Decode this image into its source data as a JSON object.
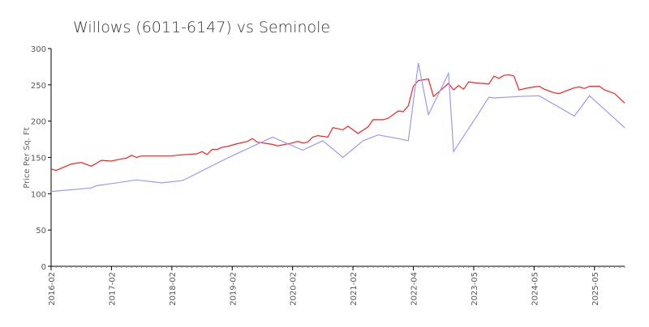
{
  "chart_data": {
    "type": "line",
    "title": "Willows (6011-6147) vs Seminole",
    "xlabel": "",
    "ylabel": "Price Per Sq. Ft",
    "ylim": [
      0,
      300
    ],
    "y_ticks": [
      "0",
      "50",
      "100",
      "150",
      "200",
      "250",
      "300"
    ],
    "x_start": "2016-02",
    "x_end": "2025-08",
    "x_ticks": [
      "2016-02",
      "2017-02",
      "2018-02",
      "2019-02",
      "2020-02",
      "2021-02",
      "2022-04",
      "2023-05",
      "2024-05",
      "2025-05"
    ],
    "grid": false,
    "legend": "none",
    "series": [
      {
        "color": "#ff2020",
        "points": [
          [
            "2016-02",
            134
          ],
          [
            "2016-03",
            132
          ],
          [
            "2016-06",
            141
          ],
          [
            "2016-08",
            143
          ],
          [
            "2016-10",
            138
          ],
          [
            "2016-12",
            146
          ],
          [
            "2017-02",
            145
          ],
          [
            "2017-04",
            148
          ],
          [
            "2017-05",
            149
          ],
          [
            "2017-06",
            153
          ],
          [
            "2017-07",
            150
          ],
          [
            "2017-08",
            152
          ],
          [
            "2018-02",
            152
          ],
          [
            "2018-03",
            153
          ],
          [
            "2018-07",
            155
          ],
          [
            "2018-08",
            158
          ],
          [
            "2018-09",
            154
          ],
          [
            "2018-10",
            161
          ],
          [
            "2018-11",
            161
          ],
          [
            "2018-12",
            164
          ],
          [
            "2019-01",
            165
          ],
          [
            "2019-03",
            169
          ],
          [
            "2019-05",
            172
          ],
          [
            "2019-06",
            176
          ],
          [
            "2019-07",
            171
          ],
          [
            "2019-10",
            168
          ],
          [
            "2019-11",
            166
          ],
          [
            "2020-02",
            170
          ],
          [
            "2020-03",
            172
          ],
          [
            "2020-04",
            170
          ],
          [
            "2020-05",
            171
          ],
          [
            "2020-06",
            178
          ],
          [
            "2020-07",
            180
          ],
          [
            "2020-09",
            178
          ],
          [
            "2020-10",
            191
          ],
          [
            "2020-12",
            188
          ],
          [
            "2021-01",
            193
          ],
          [
            "2021-03",
            183
          ],
          [
            "2021-05",
            192
          ],
          [
            "2021-06",
            202
          ],
          [
            "2021-08",
            202
          ],
          [
            "2021-09",
            204
          ],
          [
            "2021-11",
            214
          ],
          [
            "2021-12",
            213
          ],
          [
            "2022-01",
            221
          ],
          [
            "2022-02",
            248
          ],
          [
            "2022-03",
            256
          ],
          [
            "2022-05",
            258
          ],
          [
            "2022-06",
            234
          ],
          [
            "2022-09",
            252
          ],
          [
            "2022-10",
            243
          ],
          [
            "2022-11",
            249
          ],
          [
            "2022-12",
            244
          ],
          [
            "2023-01",
            254
          ],
          [
            "2023-02",
            253
          ],
          [
            "2023-05",
            251
          ],
          [
            "2023-06",
            262
          ],
          [
            "2023-07",
            259
          ],
          [
            "2023-08",
            263
          ],
          [
            "2023-09",
            264
          ],
          [
            "2023-10",
            262
          ],
          [
            "2023-11",
            243
          ],
          [
            "2024-01",
            246
          ],
          [
            "2024-03",
            248
          ],
          [
            "2024-04",
            244
          ],
          [
            "2024-06",
            239
          ],
          [
            "2024-07",
            238
          ],
          [
            "2024-10",
            246
          ],
          [
            "2024-11",
            247
          ],
          [
            "2024-12",
            245
          ],
          [
            "2025-01",
            248
          ],
          [
            "2025-03",
            248
          ],
          [
            "2025-04",
            243
          ],
          [
            "2025-06",
            238
          ],
          [
            "2025-08",
            225
          ]
        ]
      },
      {
        "color": "#9999ff",
        "points": [
          [
            "2016-02",
            103
          ],
          [
            "2016-10",
            108
          ],
          [
            "2016-11",
            111
          ],
          [
            "2017-07",
            119
          ],
          [
            "2017-12",
            115
          ],
          [
            "2018-04",
            118
          ],
          [
            "2018-05",
            121
          ],
          [
            "2019-01",
            149
          ],
          [
            "2019-10",
            178
          ],
          [
            "2020-04",
            160
          ],
          [
            "2020-08",
            173
          ],
          [
            "2020-12",
            150
          ],
          [
            "2021-04",
            173
          ],
          [
            "2021-07",
            181
          ],
          [
            "2021-11",
            176
          ],
          [
            "2022-01",
            173
          ],
          [
            "2022-03",
            280
          ],
          [
            "2022-05",
            209
          ],
          [
            "2022-09",
            266
          ],
          [
            "2022-10",
            158
          ],
          [
            "2023-03",
            211
          ],
          [
            "2023-05",
            233
          ],
          [
            "2023-06",
            232
          ],
          [
            "2023-11",
            234
          ],
          [
            "2024-03",
            235
          ],
          [
            "2024-10",
            207
          ],
          [
            "2025-01",
            235
          ],
          [
            "2025-08",
            191
          ]
        ]
      }
    ]
  }
}
